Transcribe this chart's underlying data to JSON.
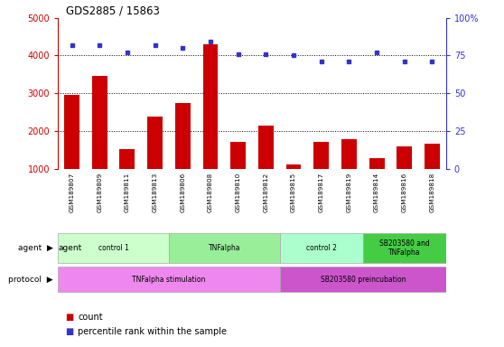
{
  "title": "GDS2885 / 15863",
  "samples": [
    "GSM189807",
    "GSM189809",
    "GSM189811",
    "GSM189813",
    "GSM189806",
    "GSM189808",
    "GSM189810",
    "GSM189812",
    "GSM189815",
    "GSM189817",
    "GSM189819",
    "GSM189814",
    "GSM189816",
    "GSM189818"
  ],
  "counts": [
    2950,
    3450,
    1520,
    2380,
    2750,
    4300,
    1700,
    2150,
    1100,
    1700,
    1780,
    1280,
    1580,
    1650
  ],
  "percentiles": [
    82,
    82,
    77,
    82,
    80,
    84,
    76,
    76,
    75,
    71,
    71,
    77,
    71,
    71
  ],
  "ylim_left": [
    1000,
    5000
  ],
  "ylim_right": [
    0,
    100
  ],
  "yticks_left": [
    1000,
    2000,
    3000,
    4000,
    5000
  ],
  "yticks_right": [
    0,
    25,
    50,
    75,
    100
  ],
  "bar_color": "#cc0000",
  "dot_color": "#3333cc",
  "tick_color_left": "#cc0000",
  "tick_color_right": "#3333cc",
  "bar_width": 0.55,
  "dotted_lines": [
    2000,
    3000,
    4000
  ],
  "agent_groups": [
    {
      "label": "control 1",
      "start": 0,
      "end": 3,
      "color": "#ccffcc"
    },
    {
      "label": "TNFalpha",
      "start": 4,
      "end": 7,
      "color": "#99ee99"
    },
    {
      "label": "control 2",
      "start": 8,
      "end": 10,
      "color": "#aaffcc"
    },
    {
      "label": "SB203580 and\nTNFalpha",
      "start": 11,
      "end": 13,
      "color": "#44cc44"
    }
  ],
  "protocol_groups": [
    {
      "label": "TNFalpha stimulation",
      "start": 0,
      "end": 7,
      "color": "#ee88ee"
    },
    {
      "label": "SB203580 preincubation",
      "start": 8,
      "end": 13,
      "color": "#cc55cc"
    }
  ],
  "xtick_bg": "#c8c8c8",
  "legend_count_color": "#cc0000",
  "legend_dot_color": "#3333cc"
}
